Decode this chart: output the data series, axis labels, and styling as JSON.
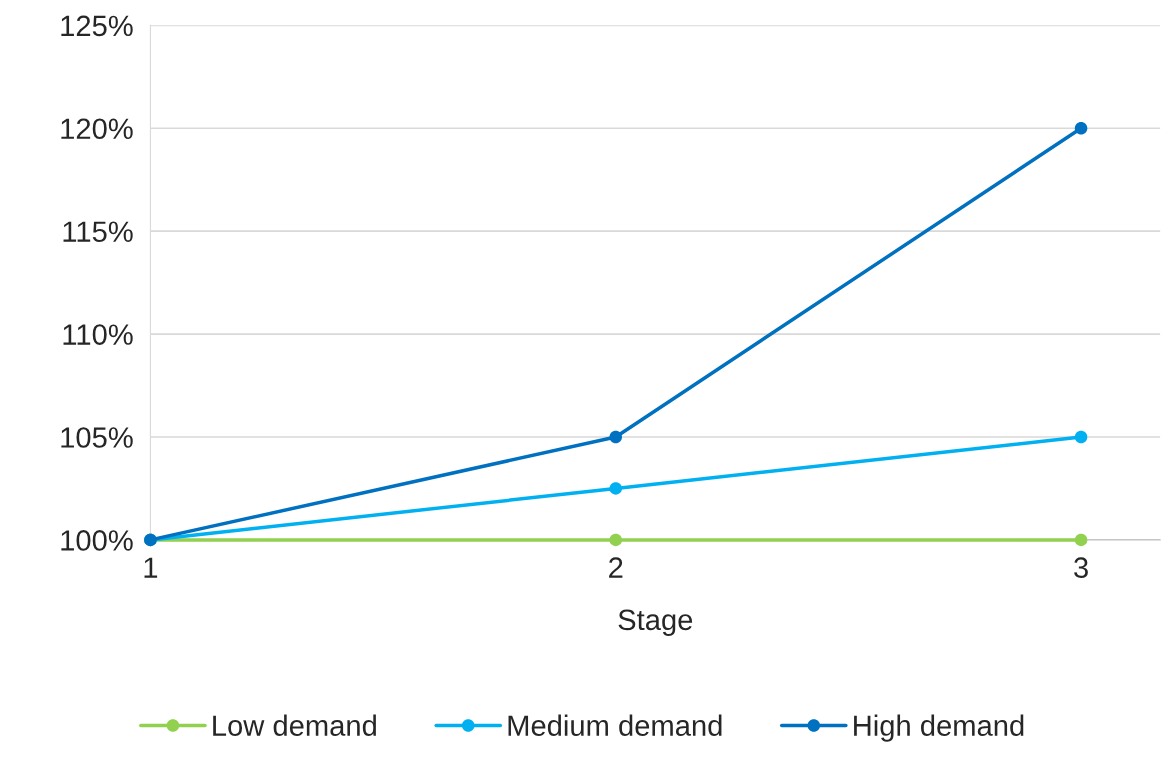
{
  "chart_data": {
    "type": "line",
    "xlabel": "Stage",
    "x": [
      1,
      2,
      3
    ],
    "series": [
      {
        "name": "Low demand",
        "color": "#92d050",
        "values": [
          100,
          100,
          100
        ]
      },
      {
        "name": "Medium demand",
        "color": "#00b0f0",
        "values": [
          100,
          102.5,
          105
        ]
      },
      {
        "name": "High demand",
        "color": "#0070c0",
        "values": [
          100,
          105,
          120
        ]
      }
    ],
    "xlim": [
      1,
      3.17
    ],
    "xticks": [
      1,
      2,
      3
    ],
    "ylim": [
      100,
      125
    ],
    "yticks": [
      {
        "value": 100,
        "label": "100%"
      },
      {
        "value": 105,
        "label": "105%"
      },
      {
        "value": 110,
        "label": "110%"
      },
      {
        "value": 115,
        "label": "115%"
      },
      {
        "value": 120,
        "label": "120%"
      },
      {
        "value": 125,
        "label": "125%"
      }
    ],
    "grid": "y",
    "legend": "bottom",
    "marker": "circle",
    "line_style": "solid"
  }
}
